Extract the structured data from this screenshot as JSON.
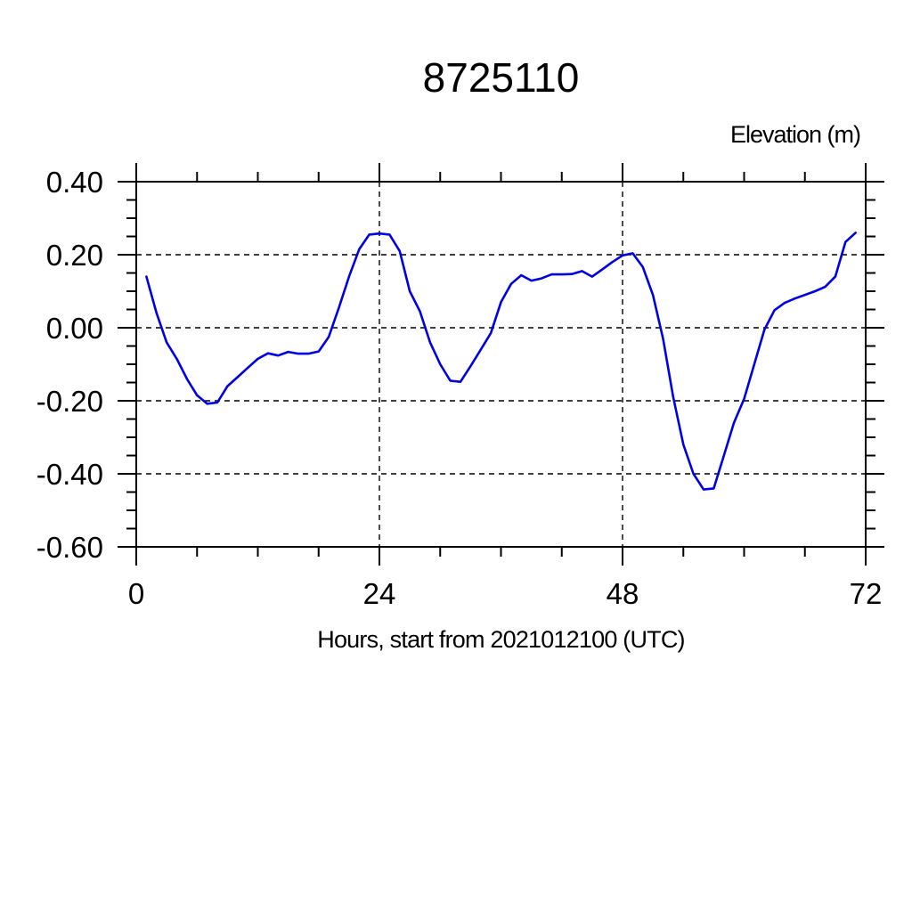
{
  "page": {
    "background": "#ffffff"
  },
  "chart_data": {
    "type": "line",
    "title": "8725110",
    "ylabel": "Elevation (m)",
    "xlabel": "Hours, start from 2021012100 (UTC)",
    "xlim": [
      0,
      72
    ],
    "ylim": [
      -0.6,
      0.4
    ],
    "x_axis": {
      "major_ticks": [
        0,
        24,
        48,
        72
      ],
      "labels": [
        "0",
        "24",
        "48",
        "72"
      ],
      "minor_step": 6
    },
    "y_axis": {
      "major_ticks": [
        0.4,
        0.2,
        0,
        -0.2,
        -0.4,
        -0.6
      ],
      "labels": [
        "0.40",
        "0.20",
        "0.00",
        "-0.20",
        "-0.40",
        "-0.60"
      ],
      "minor_step": 0.05
    },
    "grid": {
      "style": "dashed",
      "color": "#000000",
      "on_major_ticks": true
    },
    "axis_color": "#000000",
    "line_color": "#0000e8",
    "series": [
      {
        "name": "elevation",
        "x": [
          1,
          2,
          3,
          4,
          5,
          6,
          7,
          8,
          9,
          10,
          11,
          12,
          13,
          14,
          15,
          16,
          17,
          18,
          19,
          20,
          21,
          22,
          23,
          24,
          25,
          26,
          27,
          28,
          29,
          30,
          31,
          32,
          33,
          34,
          35,
          36,
          37,
          38,
          39,
          40,
          41,
          42,
          43,
          44,
          45,
          46,
          47,
          48,
          49,
          50,
          51,
          52,
          53,
          54,
          55,
          56,
          57,
          58,
          59,
          60,
          61,
          62,
          63,
          64,
          65,
          66,
          67,
          68,
          69,
          70,
          71
        ],
        "y": [
          0.14,
          0.04,
          -0.04,
          -0.085,
          -0.14,
          -0.185,
          -0.208,
          -0.205,
          -0.16,
          -0.135,
          -0.11,
          -0.085,
          -0.07,
          -0.076,
          -0.066,
          -0.071,
          -0.071,
          -0.065,
          -0.025,
          0.055,
          0.14,
          0.215,
          0.255,
          0.258,
          0.255,
          0.21,
          0.1,
          0.045,
          -0.04,
          -0.1,
          -0.145,
          -0.148,
          -0.105,
          -0.06,
          -0.015,
          0.07,
          0.12,
          0.144,
          0.129,
          0.135,
          0.146,
          0.146,
          0.147,
          0.155,
          0.14,
          0.16,
          0.18,
          0.198,
          0.204,
          0.166,
          0.09,
          -0.03,
          -0.19,
          -0.32,
          -0.4,
          -0.443,
          -0.44,
          -0.35,
          -0.26,
          -0.195,
          -0.1,
          -0.005,
          0.048,
          0.068,
          0.08,
          0.09,
          0.1,
          0.112,
          0.14,
          0.235,
          0.26
        ]
      }
    ]
  }
}
